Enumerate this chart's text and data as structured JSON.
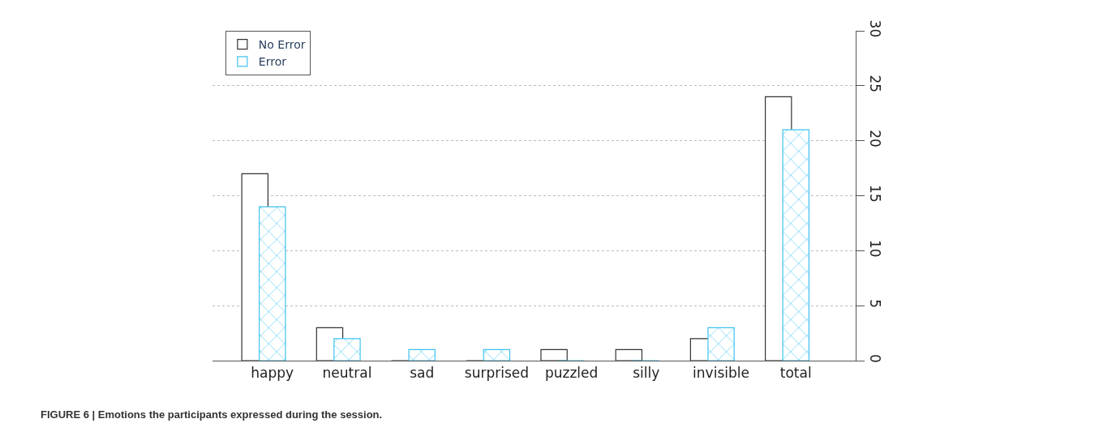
{
  "chart_data": {
    "type": "bar",
    "categories": [
      "happy",
      "neutral",
      "sad",
      "surprised",
      "puzzled",
      "silly",
      "invisible",
      "total"
    ],
    "series": [
      {
        "name": "No Error",
        "color": "#333333",
        "values": [
          17,
          3,
          0,
          0,
          1,
          1,
          2,
          24
        ]
      },
      {
        "name": "Error",
        "color": "#3ec3ef",
        "values": [
          14,
          2,
          1,
          1,
          0,
          0,
          3,
          21
        ]
      }
    ],
    "ylim": [
      0,
      30
    ],
    "yticks": [
      0,
      5,
      10,
      15,
      20,
      25,
      30
    ],
    "grid": "y",
    "legend": "top left",
    "annotations": [
      "FIGURE 6 | Emotions the participants expressed during the session."
    ]
  }
}
